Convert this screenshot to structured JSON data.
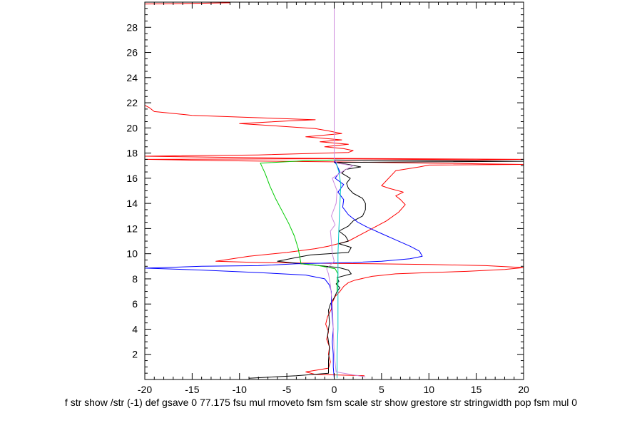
{
  "chart_data": {
    "type": "line",
    "title": "",
    "xlabel": "",
    "ylabel": "",
    "xlim": [
      -20,
      20
    ],
    "ylim": [
      0,
      30
    ],
    "x_ticks": [
      -20,
      -15,
      -10,
      -5,
      0,
      5,
      10,
      15,
      20
    ],
    "y_ticks": [
      2,
      4,
      6,
      8,
      10,
      12,
      14,
      16,
      18,
      20,
      22,
      24,
      26,
      28
    ],
    "x_tick_labels": [
      "-20",
      "-15",
      "-10",
      "-5",
      "0",
      "5",
      "10",
      "15",
      "20"
    ],
    "y_tick_labels": [
      "2",
      "4",
      "6",
      "8",
      "10",
      "12",
      "14",
      "16",
      "18",
      "20",
      "22",
      "24",
      "26",
      "28"
    ],
    "grid": false,
    "legend": "none",
    "series": [
      {
        "name": "red",
        "color": "#ff0000",
        "points": [
          [
            3.2,
            0.3
          ],
          [
            -2.0,
            0.4
          ],
          [
            -3.0,
            0.6
          ],
          [
            -0.6,
            0.9
          ],
          [
            -0.4,
            1.4
          ],
          [
            -0.6,
            2.0
          ],
          [
            -0.5,
            2.6
          ],
          [
            -0.8,
            3.2
          ],
          [
            -0.6,
            3.8
          ],
          [
            -0.9,
            4.4
          ],
          [
            -0.7,
            5.0
          ],
          [
            -0.3,
            5.6
          ],
          [
            -0.2,
            6.1
          ],
          [
            0.1,
            6.6
          ],
          [
            0.6,
            7.0
          ],
          [
            1.0,
            7.4
          ],
          [
            1.5,
            7.7
          ],
          [
            2.2,
            7.9
          ],
          [
            4.0,
            8.2
          ],
          [
            6.5,
            8.4
          ],
          [
            10.0,
            8.5
          ],
          [
            14.0,
            8.6
          ],
          [
            18.0,
            8.75
          ],
          [
            20.0,
            8.9
          ],
          [
            16.0,
            9.05
          ],
          [
            10.0,
            9.15
          ],
          [
            4.0,
            9.2
          ],
          [
            -3.0,
            9.25
          ],
          [
            -8.0,
            9.3
          ],
          [
            -12.5,
            9.4
          ],
          [
            -9.0,
            9.8
          ],
          [
            -5.0,
            10.1
          ],
          [
            -2.0,
            10.4
          ],
          [
            -0.6,
            10.6
          ],
          [
            1.5,
            11.0
          ],
          [
            3.5,
            11.8
          ],
          [
            5.5,
            12.6
          ],
          [
            6.8,
            13.3
          ],
          [
            7.5,
            13.9
          ],
          [
            7.0,
            14.3
          ],
          [
            6.5,
            14.6
          ],
          [
            7.3,
            14.9
          ],
          [
            5.8,
            15.2
          ],
          [
            5.0,
            15.4
          ],
          [
            5.5,
            15.8
          ],
          [
            6.0,
            16.2
          ],
          [
            6.5,
            16.6
          ],
          [
            9.0,
            16.9
          ],
          [
            10.0,
            17.05
          ],
          [
            20.0,
            17.1
          ],
          [
            10.0,
            17.2
          ],
          [
            0.0,
            17.3
          ],
          [
            -12.0,
            17.4
          ],
          [
            -20.0,
            17.5
          ],
          [
            0.0,
            17.55
          ],
          [
            15.0,
            17.45
          ],
          [
            20.0,
            17.5
          ],
          [
            -5.0,
            17.6
          ],
          [
            -20.0,
            17.75
          ],
          [
            -8.0,
            17.85
          ],
          [
            1.5,
            18.05
          ],
          [
            2.0,
            18.2
          ],
          [
            1.0,
            18.35
          ],
          [
            -1.0,
            18.5
          ],
          [
            1.5,
            18.7
          ],
          [
            -1.5,
            18.9
          ],
          [
            0.8,
            19.05
          ],
          [
            -3.0,
            19.3
          ],
          [
            0.8,
            19.55
          ],
          [
            -0.5,
            19.75
          ],
          [
            -2.0,
            19.95
          ],
          [
            -7.0,
            20.2
          ],
          [
            -10.0,
            20.35
          ],
          [
            -5.0,
            20.55
          ],
          [
            -2.0,
            20.65
          ],
          [
            -15.0,
            21.0
          ],
          [
            -19.0,
            21.3
          ],
          [
            -19.5,
            21.6
          ],
          [
            -20.0,
            21.8
          ],
          [
            -20.0,
            29.85
          ],
          [
            -15.0,
            29.9
          ],
          [
            -11.0,
            29.95
          ]
        ]
      },
      {
        "name": "black",
        "color": "#000000",
        "points": [
          [
            -9.0,
            0.1
          ],
          [
            -4.0,
            0.3
          ],
          [
            -0.6,
            0.5
          ],
          [
            -0.6,
            1.5
          ],
          [
            -0.5,
            2.5
          ],
          [
            -0.7,
            3.5
          ],
          [
            -0.5,
            4.5
          ],
          [
            -0.6,
            5.5
          ],
          [
            -0.4,
            6.0
          ],
          [
            0.0,
            6.5
          ],
          [
            0.3,
            7.0
          ],
          [
            0.6,
            7.3
          ],
          [
            0.2,
            7.6
          ],
          [
            0.5,
            7.8
          ],
          [
            0.3,
            8.1
          ],
          [
            1.8,
            8.4
          ],
          [
            1.5,
            8.7
          ],
          [
            0.5,
            8.9
          ],
          [
            -3.5,
            9.2
          ],
          [
            -6.0,
            9.4
          ],
          [
            -4.0,
            9.7
          ],
          [
            -2.5,
            9.9
          ],
          [
            1.5,
            10.1
          ],
          [
            1.8,
            10.5
          ],
          [
            0.5,
            10.8
          ],
          [
            1.5,
            11.0
          ],
          [
            1.2,
            11.4
          ],
          [
            0.5,
            11.8
          ],
          [
            1.5,
            12.2
          ],
          [
            2.0,
            12.6
          ],
          [
            3.0,
            13.0
          ],
          [
            3.3,
            13.5
          ],
          [
            3.3,
            14.0
          ],
          [
            3.0,
            14.4
          ],
          [
            2.0,
            14.8
          ],
          [
            1.5,
            15.2
          ],
          [
            1.3,
            15.6
          ],
          [
            1.7,
            16.0
          ],
          [
            0.8,
            16.4
          ],
          [
            1.2,
            16.7
          ],
          [
            2.8,
            16.9
          ],
          [
            1.5,
            17.1
          ],
          [
            0.0,
            17.25
          ],
          [
            10.0,
            17.3
          ],
          [
            20.0,
            17.35
          ],
          [
            5.0,
            17.4
          ],
          [
            0.0,
            17.45
          ]
        ]
      },
      {
        "name": "blue",
        "color": "#0000ff",
        "points": [
          [
            0.0,
            0.1
          ],
          [
            -0.1,
            1.0
          ],
          [
            -0.1,
            2.0
          ],
          [
            -0.2,
            3.0
          ],
          [
            -0.1,
            4.0
          ],
          [
            -0.2,
            5.0
          ],
          [
            -0.3,
            6.0
          ],
          [
            -0.3,
            7.0
          ],
          [
            -0.5,
            7.5
          ],
          [
            -1.0,
            8.0
          ],
          [
            -3.0,
            8.3
          ],
          [
            -8.0,
            8.5
          ],
          [
            -14.0,
            8.7
          ],
          [
            -20.0,
            8.85
          ],
          [
            -14.0,
            9.0
          ],
          [
            -8.0,
            9.05
          ],
          [
            -4.0,
            9.2
          ],
          [
            -1.0,
            9.25
          ],
          [
            2.0,
            9.3
          ],
          [
            5.0,
            9.4
          ],
          [
            8.0,
            9.6
          ],
          [
            9.3,
            9.8
          ],
          [
            9.0,
            10.2
          ],
          [
            8.0,
            10.6
          ],
          [
            6.5,
            11.1
          ],
          [
            5.0,
            11.6
          ],
          [
            3.5,
            12.1
          ],
          [
            2.5,
            12.5
          ],
          [
            1.5,
            13.1
          ],
          [
            0.9,
            13.7
          ],
          [
            1.0,
            14.3
          ],
          [
            0.4,
            14.9
          ],
          [
            1.0,
            15.5
          ],
          [
            0.1,
            16.0
          ],
          [
            0.6,
            16.5
          ],
          [
            0.3,
            17.0
          ],
          [
            0.0,
            17.4
          ]
        ]
      },
      {
        "name": "green",
        "color": "#00cc00",
        "points": [
          [
            0.3,
            7.0
          ],
          [
            0.3,
            7.8
          ],
          [
            0.4,
            8.4
          ],
          [
            0.1,
            8.8
          ],
          [
            -2.0,
            9.1
          ],
          [
            -3.5,
            9.2
          ],
          [
            -3.6,
            9.6
          ],
          [
            -3.8,
            10.4
          ],
          [
            -4.2,
            11.4
          ],
          [
            -4.8,
            12.4
          ],
          [
            -5.5,
            13.4
          ],
          [
            -6.2,
            14.4
          ],
          [
            -6.8,
            15.4
          ],
          [
            -7.3,
            16.4
          ],
          [
            -7.8,
            17.2
          ],
          [
            -3.0,
            17.4
          ],
          [
            0.0,
            17.45
          ]
        ]
      },
      {
        "name": "cyan",
        "color": "#00c8c8",
        "points": [
          [
            0.3,
            0.1
          ],
          [
            0.3,
            2.0
          ],
          [
            0.4,
            4.0
          ],
          [
            0.4,
            6.0
          ],
          [
            0.4,
            8.0
          ],
          [
            0.4,
            10.0
          ],
          [
            0.5,
            12.0
          ],
          [
            0.6,
            14.0
          ],
          [
            0.7,
            15.5
          ],
          [
            0.5,
            16.5
          ],
          [
            0.2,
            17.2
          ]
        ]
      },
      {
        "name": "violet",
        "color": "#cc88dd",
        "points": [
          [
            0.0,
            30.0
          ],
          [
            0.0,
            17.5
          ],
          [
            0.3,
            17.2
          ],
          [
            2.0,
            17.0
          ],
          [
            1.0,
            16.6
          ],
          [
            -0.2,
            16.0
          ],
          [
            0.3,
            15.0
          ],
          [
            0.2,
            14.0
          ],
          [
            -0.3,
            13.0
          ],
          [
            0.1,
            12.3
          ],
          [
            -0.4,
            11.8
          ],
          [
            -0.3,
            11.0
          ],
          [
            -0.2,
            10.0
          ],
          [
            0.0,
            9.4
          ],
          [
            -0.8,
            8.8
          ],
          [
            -0.6,
            8.4
          ],
          [
            -0.4,
            7.5
          ],
          [
            -0.2,
            6.0
          ],
          [
            -0.1,
            4.0
          ],
          [
            0.0,
            2.0
          ],
          [
            0.2,
            0.6
          ],
          [
            3.3,
            0.2
          ]
        ]
      }
    ]
  },
  "caption": {
    "text": "f str show /str (-1) def gsave 0 77.175 fsu mul rmoveto fsm fsm scale str show grestore str stringwidth pop fsm mul 0"
  }
}
